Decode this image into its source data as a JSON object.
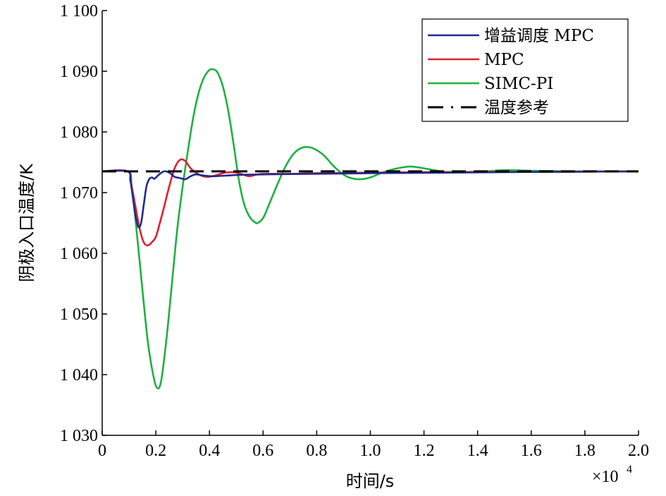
{
  "chart_data": {
    "type": "line",
    "xlabel": "时间/s",
    "ylabel": "阴极入口温度/K",
    "x_multiplier": "×10",
    "x_multiplier_exp": "4",
    "xlim": [
      0,
      2.0
    ],
    "ylim": [
      1030,
      1100
    ],
    "x_ticks": [
      0,
      0.2,
      0.4,
      0.6,
      0.8,
      1.0,
      1.2,
      1.4,
      1.6,
      1.8,
      2.0
    ],
    "x_tick_labels": [
      "0",
      "0.2",
      "0.4",
      "0.6",
      "0.8",
      "1.0",
      "1.2",
      "1.4",
      "1.6",
      "1.8",
      "2.0"
    ],
    "y_ticks": [
      1030,
      1040,
      1050,
      1060,
      1070,
      1080,
      1090,
      1100
    ],
    "y_tick_labels": [
      "1 030",
      "1 040",
      "1 050",
      "1 060",
      "1 070",
      "1 080",
      "1 090",
      "1 100"
    ],
    "grid": false,
    "legend_position": "top-right",
    "series": [
      {
        "name": "增益调度 MPC",
        "color": "#1f2a8c",
        "dash": "solid",
        "x": [
          0,
          0.095,
          0.105,
          0.115,
          0.125,
          0.135,
          0.145,
          0.155,
          0.165,
          0.175,
          0.185,
          0.195,
          0.21,
          0.23,
          0.25,
          0.27,
          0.29,
          0.31,
          0.33,
          0.35,
          0.38,
          0.42,
          0.5,
          0.6,
          0.8,
          1.0,
          1.3,
          1.6,
          2.0
        ],
        "values": [
          1073.5,
          1073.5,
          1072.0,
          1069.0,
          1066.0,
          1064.3,
          1065.0,
          1068.0,
          1071.0,
          1072.2,
          1072.5,
          1072.3,
          1072.9,
          1073.5,
          1073.3,
          1072.6,
          1072.4,
          1072.2,
          1072.7,
          1073.0,
          1072.8,
          1072.7,
          1072.9,
          1073.0,
          1073.1,
          1073.2,
          1073.3,
          1073.4,
          1073.5
        ]
      },
      {
        "name": "MPC",
        "color": "#e02030",
        "dash": "solid",
        "x": [
          0,
          0.095,
          0.11,
          0.125,
          0.14,
          0.155,
          0.17,
          0.185,
          0.2,
          0.215,
          0.23,
          0.25,
          0.27,
          0.29,
          0.31,
          0.33,
          0.36,
          0.39,
          0.42,
          0.46,
          0.5,
          0.53,
          0.55,
          0.58,
          0.62,
          0.7,
          0.8,
          1.0,
          1.3,
          1.6,
          2.0
        ],
        "values": [
          1073.5,
          1073.5,
          1071.0,
          1067.5,
          1064.0,
          1061.8,
          1061.3,
          1061.8,
          1062.7,
          1065.0,
          1067.5,
          1071.0,
          1074.0,
          1075.4,
          1075.2,
          1074.0,
          1073.0,
          1072.6,
          1072.8,
          1073.3,
          1073.3,
          1072.9,
          1072.7,
          1073.0,
          1073.1,
          1073.1,
          1073.2,
          1073.3,
          1073.4,
          1073.4,
          1073.5
        ]
      },
      {
        "name": "SIMC-PI",
        "color": "#1fb040",
        "dash": "solid",
        "x": [
          0,
          0.095,
          0.11,
          0.13,
          0.15,
          0.17,
          0.19,
          0.205,
          0.22,
          0.24,
          0.26,
          0.28,
          0.3,
          0.32,
          0.34,
          0.36,
          0.38,
          0.4,
          0.415,
          0.43,
          0.45,
          0.47,
          0.49,
          0.51,
          0.53,
          0.55,
          0.57,
          0.58,
          0.6,
          0.62,
          0.65,
          0.68,
          0.71,
          0.74,
          0.77,
          0.8,
          0.83,
          0.86,
          0.89,
          0.92,
          0.96,
          1.0,
          1.05,
          1.1,
          1.15,
          1.2,
          1.25,
          1.3,
          1.4,
          1.5,
          1.6,
          1.8,
          2.0
        ],
        "values": [
          1073.5,
          1073.5,
          1071.0,
          1063.0,
          1054.0,
          1045.5,
          1040.0,
          1037.8,
          1039.0,
          1046.0,
          1055.0,
          1064.0,
          1071.0,
          1077.0,
          1082.5,
          1086.5,
          1089.0,
          1090.2,
          1090.3,
          1089.8,
          1087.5,
          1083.5,
          1078.0,
          1072.0,
          1068.0,
          1066.0,
          1065.1,
          1065.0,
          1065.8,
          1067.8,
          1071.0,
          1074.0,
          1076.2,
          1077.3,
          1077.5,
          1077.0,
          1076.0,
          1074.5,
          1073.3,
          1072.5,
          1072.2,
          1072.5,
          1073.4,
          1074.0,
          1074.3,
          1074.0,
          1073.6,
          1073.3,
          1073.4,
          1073.7,
          1073.6,
          1073.5,
          1073.5
        ]
      },
      {
        "name": "温度参考",
        "color": "#000000",
        "dash": "dashed",
        "x": [
          0,
          2.0
        ],
        "values": [
          1073.5,
          1073.5
        ]
      }
    ]
  }
}
